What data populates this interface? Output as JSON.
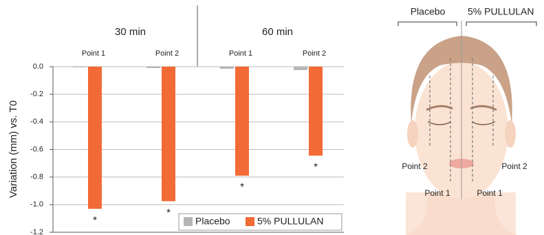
{
  "chart_data": {
    "type": "bar",
    "y_label": "Variation (mm) vs. T0",
    "groups": [
      "30 min",
      "60 min"
    ],
    "categories": [
      "Point 1",
      "Point 2",
      "Point 1",
      "Point 2"
    ],
    "series": [
      {
        "name": "Placebo",
        "color": "#b5b5b5",
        "values": [
          -0.005,
          -0.01,
          -0.015,
          -0.025
        ]
      },
      {
        "name": "5% PULLULAN",
        "color": "#f26a35",
        "values": [
          -1.03,
          -0.975,
          -0.79,
          -0.645
        ]
      }
    ],
    "annotations": [
      "*",
      "*",
      "*",
      "*"
    ],
    "ylim": [
      -1.2,
      0
    ],
    "yticks": [
      {
        "value": 0,
        "label": "0.0"
      },
      -0.2,
      -0.4,
      -0.6,
      -0.8,
      {
        "value": -1,
        "label": "-1.0"
      },
      -1.2
    ],
    "grid": true,
    "legend": "bottom-right"
  },
  "illustration": {
    "left_label": "Placebo",
    "right_label": "5% PULLULAN",
    "points": [
      "Point 2",
      "Point 1",
      "Point 1",
      "Point 2"
    ]
  }
}
